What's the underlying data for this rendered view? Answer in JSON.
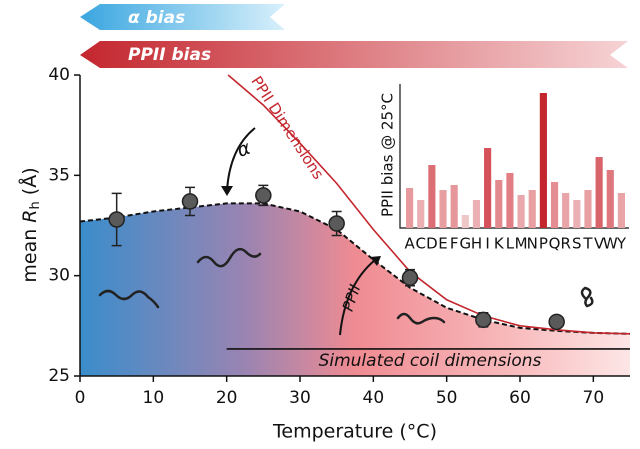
{
  "chart_data": [
    {
      "type": "scatter",
      "bias_labels": [
        {
          "text": "α bias",
          "color": "#4fb3e6"
        },
        {
          "text": "PPII bias",
          "color": "#c4262e"
        }
      ],
      "x_label": "Temperature (°C)",
      "y_label": [
        "mean ",
        "R",
        "h",
        " (Å)"
      ],
      "xlim": [
        0,
        75
      ],
      "xticks": [
        0,
        10,
        20,
        30,
        40,
        50,
        60,
        70
      ],
      "ylim": [
        25,
        40
      ],
      "yticks": [
        25,
        30,
        35,
        40
      ],
      "annotations": [
        "α",
        "PPII"
      ],
      "series": [
        {
          "kind": "points",
          "color": "#5a5a5a",
          "x": [
            5,
            15,
            25,
            35,
            45,
            55,
            65
          ],
          "values": [
            32.8,
            33.7,
            34.0,
            32.6,
            29.9,
            27.8,
            27.7
          ],
          "errors": [
            1.3,
            0.7,
            0.5,
            0.6,
            0.4,
            0.35,
            null
          ]
        },
        {
          "kind": "fit",
          "color": "#111111",
          "x": [
            0,
            5,
            10,
            15,
            20,
            25,
            30,
            35,
            40,
            45,
            50,
            55,
            60,
            65,
            70,
            75
          ],
          "values": [
            32.7,
            32.9,
            33.2,
            33.4,
            33.6,
            33.6,
            33.2,
            32.3,
            30.8,
            29.4,
            28.4,
            27.8,
            27.4,
            27.25,
            27.15,
            27.1
          ]
        },
        {
          "kind": "curve",
          "name": "PPII Dimensions",
          "color": "#c4262e",
          "x": [
            20.2,
            25,
            30,
            35,
            40,
            45,
            50,
            55,
            60,
            65,
            70,
            75
          ],
          "values": [
            40,
            38.5,
            36.6,
            34.6,
            32.3,
            30.2,
            28.8,
            28.0,
            27.5,
            27.3,
            27.15,
            27.1
          ]
        },
        {
          "kind": "curve",
          "name": "Simulated coil dimensions",
          "color": "#111111",
          "x": [
            20,
            75
          ],
          "values": [
            26.35,
            26.35
          ]
        }
      ]
    },
    {
      "type": "bar",
      "y_label": "PPII bias @ 25°C",
      "ylim": [
        0,
        140
      ],
      "categories": [
        "A",
        "C",
        "D",
        "E",
        "F",
        "G",
        "H",
        "I",
        "K",
        "L",
        "M",
        "N",
        "P",
        "Q",
        "R",
        "S",
        "T",
        "V",
        "W",
        "Y"
      ],
      "values": [
        40,
        28,
        63,
        38,
        43,
        13,
        28,
        80,
        48,
        55,
        33,
        38,
        135,
        46,
        35,
        28,
        38,
        71,
        58,
        35
      ],
      "colors": [
        "#e79a9e",
        "#eab0b3",
        "#dc6f76",
        "#e79fa2",
        "#e6979b",
        "#f0c7c9",
        "#eab0b3",
        "#d5525a",
        "#e38a8f",
        "#e17f85",
        "#e9a8ab",
        "#e79fa2",
        "#c4262e",
        "#e48e93",
        "#e8a4a7",
        "#eab0b3",
        "#e79fa2",
        "#d9636a",
        "#df787e",
        "#e8a4a7"
      ]
    }
  ]
}
